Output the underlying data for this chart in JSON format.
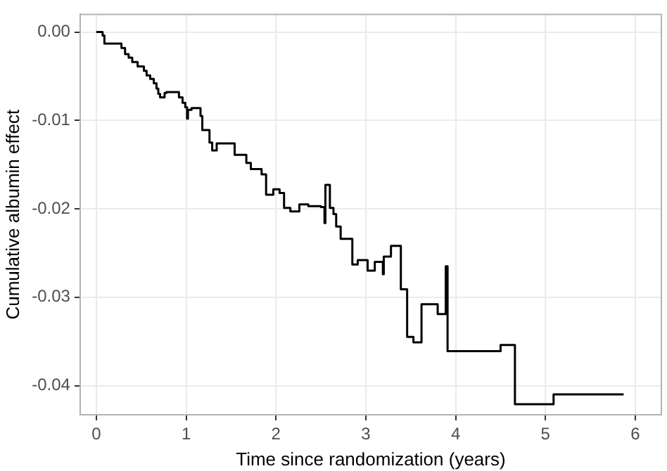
{
  "chart_data": {
    "type": "step",
    "xlabel": "Time since randomization (years)",
    "ylabel": "Cumulative albumin effect",
    "x": [
      0,
      0.07,
      0.09,
      0.28,
      0.32,
      0.36,
      0.4,
      0.46,
      0.53,
      0.56,
      0.6,
      0.64,
      0.67,
      0.69,
      0.71,
      0.76,
      0.78,
      0.92,
      0.96,
      0.99,
      1.01,
      1.02,
      1.06,
      1.16,
      1.18,
      1.26,
      1.29,
      1.34,
      1.54,
      1.67,
      1.72,
      1.84,
      1.89,
      1.97,
      2.04,
      2.09,
      2.16,
      2.26,
      2.36,
      2.5,
      2.54,
      2.55,
      2.6,
      2.64,
      2.67,
      2.72,
      2.85,
      2.91,
      3.02,
      3.1,
      3.19,
      3.2,
      3.28,
      3.39,
      3.46,
      3.53,
      3.62,
      3.8,
      3.89,
      3.91,
      4.5,
      4.66,
      5.09,
      5.87
    ],
    "series": [
      {
        "color": "#000000",
        "values": [
          0,
          -0.0004,
          -0.0013,
          -0.0018,
          -0.0025,
          -0.0029,
          -0.0034,
          -0.0039,
          -0.0044,
          -0.0049,
          -0.0053,
          -0.0058,
          -0.0064,
          -0.007,
          -0.0074,
          -0.0069,
          -0.0068,
          -0.0074,
          -0.008,
          -0.0085,
          -0.0098,
          -0.0088,
          -0.0086,
          -0.0095,
          -0.0111,
          -0.0125,
          -0.0134,
          -0.0126,
          -0.0139,
          -0.0148,
          -0.0155,
          -0.0161,
          -0.0184,
          -0.0178,
          -0.0182,
          -0.0199,
          -0.0203,
          -0.0195,
          -0.0197,
          -0.0198,
          -0.0216,
          -0.0173,
          -0.0199,
          -0.0206,
          -0.022,
          -0.0234,
          -0.0263,
          -0.0258,
          -0.027,
          -0.026,
          -0.0274,
          -0.0254,
          -0.0242,
          -0.0291,
          -0.0345,
          -0.0351,
          -0.0308,
          -0.0319,
          -0.0265,
          -0.0361,
          -0.0354,
          -0.0421,
          -0.041,
          -0.041
        ]
      }
    ],
    "xlim": [
      -0.18,
      6.29
    ],
    "ylim": [
      -0.0433,
      0.002
    ],
    "xticks": [
      0,
      1,
      2,
      3,
      4,
      5,
      6
    ],
    "yticks": [
      {
        "value": 0,
        "label": "0.00"
      },
      {
        "value": -0.01,
        "label": "-0.01"
      },
      {
        "value": -0.02,
        "label": "-0.02"
      },
      {
        "value": -0.03,
        "label": "-0.03"
      },
      {
        "value": -0.04,
        "label": "-0.04"
      }
    ],
    "grid": true,
    "line_style": "solid",
    "marker": "none"
  }
}
